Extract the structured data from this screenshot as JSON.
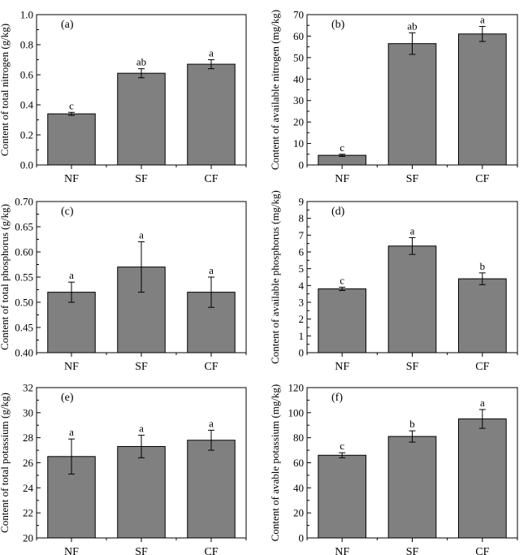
{
  "chart_data": [
    {
      "panel": "(a)",
      "type": "bar",
      "categories": [
        "NF",
        "SF",
        "CF"
      ],
      "values": [
        0.34,
        0.61,
        0.67
      ],
      "errors": [
        0.01,
        0.03,
        0.03
      ],
      "significance": [
        "c",
        "ab",
        "a"
      ],
      "ylabel": "Content of total nitrogen (g/kg)",
      "ylim": [
        0,
        1.0
      ],
      "yticks": [
        "0.0",
        "0.2",
        "0.4",
        "0.6",
        "0.8",
        "1.0"
      ],
      "bar_color": "#808080"
    },
    {
      "panel": "(b)",
      "type": "bar",
      "categories": [
        "NF",
        "SF",
        "CF"
      ],
      "values": [
        4.5,
        56.5,
        61
      ],
      "errors": [
        0.5,
        5,
        3.5
      ],
      "significance": [
        "c",
        "ab",
        "a"
      ],
      "ylabel": "Content of available nitrogen (mg/kg)",
      "ylim": [
        0,
        70
      ],
      "yticks": [
        "0",
        "10",
        "20",
        "30",
        "40",
        "50",
        "60",
        "70"
      ],
      "bar_color": "#808080"
    },
    {
      "panel": "(c)",
      "type": "bar",
      "categories": [
        "NF",
        "SF",
        "CF"
      ],
      "values": [
        0.52,
        0.57,
        0.52
      ],
      "errors": [
        0.02,
        0.05,
        0.03
      ],
      "significance": [
        "a",
        "a",
        "a"
      ],
      "ylabel": "Content of total phosphorus (g/kg)",
      "ylim": [
        0.4,
        0.7
      ],
      "yticks": [
        "0.40",
        "0.45",
        "0.50",
        "0.55",
        "0.60",
        "0.65",
        "0.70"
      ],
      "bar_color": "#808080"
    },
    {
      "panel": "(d)",
      "type": "bar",
      "categories": [
        "NF",
        "SF",
        "CF"
      ],
      "values": [
        3.8,
        6.35,
        4.4
      ],
      "errors": [
        0.1,
        0.5,
        0.35
      ],
      "significance": [
        "c",
        "a",
        "b"
      ],
      "ylabel": "Content of available phosphorus (mg/kg)",
      "ylim": [
        0,
        9
      ],
      "yticks": [
        "0",
        "1",
        "2",
        "3",
        "4",
        "5",
        "6",
        "7",
        "8",
        "9"
      ],
      "bar_color": "#808080"
    },
    {
      "panel": "(e)",
      "type": "bar",
      "categories": [
        "NF",
        "SF",
        "CF"
      ],
      "values": [
        26.5,
        27.3,
        27.8
      ],
      "errors": [
        1.4,
        0.9,
        0.8
      ],
      "significance": [
        "a",
        "a",
        "a"
      ],
      "ylabel": "Content of total potassium (g/kg)",
      "ylim": [
        20,
        32
      ],
      "yticks": [
        "20",
        "22",
        "24",
        "26",
        "28",
        "30",
        "32"
      ],
      "bar_color": "#808080"
    },
    {
      "panel": "(f)",
      "type": "bar",
      "categories": [
        "NF",
        "SF",
        "CF"
      ],
      "values": [
        66,
        81,
        95
      ],
      "errors": [
        2,
        4.5,
        7.5
      ],
      "significance": [
        "c",
        "b",
        "a"
      ],
      "ylabel": "Content of avable potassium (mg/kg)",
      "ylim": [
        0,
        120
      ],
      "yticks": [
        "0",
        "20",
        "40",
        "60",
        "80",
        "100",
        "120"
      ],
      "bar_color": "#808080"
    }
  ]
}
